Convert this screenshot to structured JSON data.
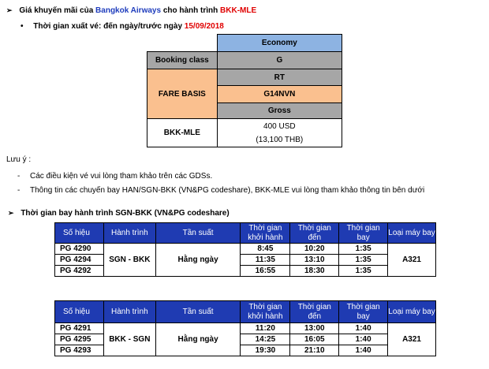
{
  "promo": {
    "arrow": "➢",
    "prefix": "Giá khuyến mãi của ",
    "airline": "Bangkok Airways",
    "middle": " cho hành trình ",
    "route": "BKK-MLE"
  },
  "issue": {
    "bullet": "•",
    "label": "Thời gian xuất vé: đến ngày/trước ngày ",
    "date": "15/09/2018"
  },
  "fare_table": {
    "cabin": "Economy",
    "booking_class_label": "Booking class",
    "booking_class": "G",
    "fare_basis_label": "FARE BASIS",
    "fare_basis_rows": [
      "RT",
      "G14NVN",
      "Gross"
    ],
    "route": "BKK-MLE",
    "price": "400 USD",
    "price_thb": "(13,100 THB)"
  },
  "notes": {
    "title": "Lưu ý :",
    "items": [
      "Các điều kiện vé vui lòng tham khảo trên các GDSs.",
      "Thông tin các chuyến bay HAN/SGN-BKK (VN&PG codeshare), BKK-MLE vui lòng tham khảo thông tin bên dưới"
    ],
    "dash": "-"
  },
  "schedule": {
    "arrow": "➢",
    "title": "Thời gian bay hành trình SGN-BKK (VN&PG codeshare)",
    "headers": {
      "flight_no": "Số hiệu",
      "route": "Hành trình",
      "frequency": "Tần suất",
      "departure": "Thời gian khởi hành",
      "arrival": "Thời gian đến",
      "duration": "Thời gian bay",
      "aircraft": "Loại máy bay"
    },
    "outbound": {
      "route": "SGN - BKK",
      "frequency": "Hằng ngày",
      "aircraft": "A321",
      "rows": [
        {
          "flight": "PG 4290",
          "dep": "8:45",
          "arr": "10:20",
          "dur": "1:35"
        },
        {
          "flight": "PG 4294",
          "dep": "11:35",
          "arr": "13:10",
          "dur": "1:35"
        },
        {
          "flight": "PG 4292",
          "dep": "16:55",
          "arr": "18:30",
          "dur": "1:35"
        }
      ]
    },
    "inbound": {
      "route": "BKK - SGN",
      "frequency": "Hằng ngày",
      "aircraft": "A321",
      "rows": [
        {
          "flight": "PG 4291",
          "dep": "11:20",
          "arr": "13:00",
          "dur": "1:40"
        },
        {
          "flight": "PG 4295",
          "dep": "14:25",
          "arr": "16:05",
          "dur": "1:40"
        },
        {
          "flight": "PG 4293",
          "dep": "19:30",
          "arr": "21:10",
          "dur": "1:40"
        }
      ]
    }
  }
}
